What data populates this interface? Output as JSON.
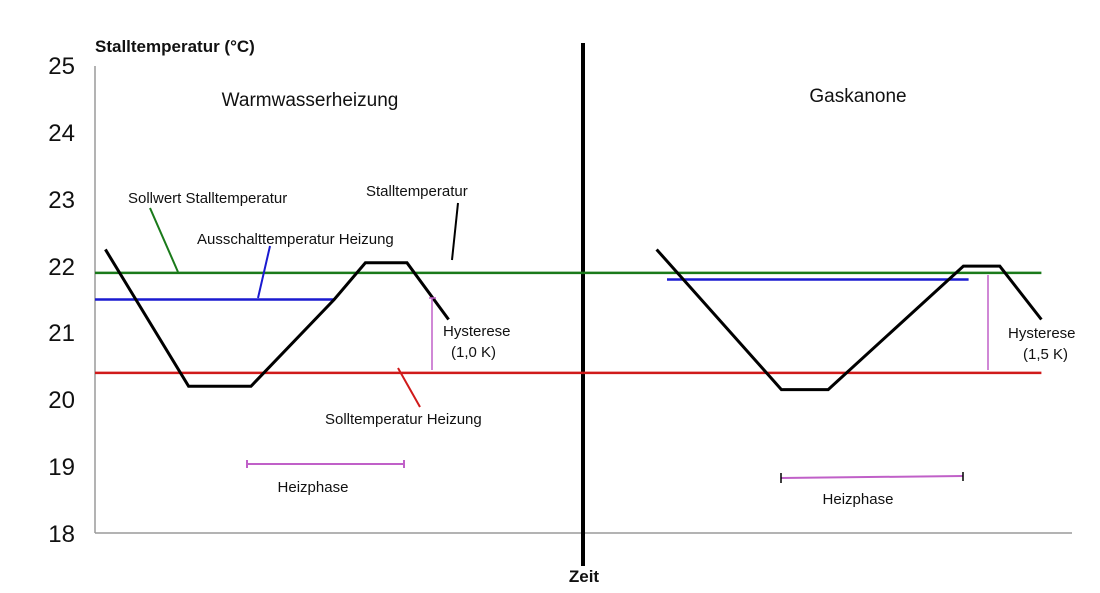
{
  "chart_data": {
    "type": "line",
    "ylabel": "Stalltemperatur (°C)",
    "xlabel": "Zeit",
    "ylim": [
      18,
      25
    ],
    "yticks": [
      "25",
      "24",
      "23",
      "22",
      "21",
      "20",
      "19",
      "18"
    ],
    "panels": [
      {
        "title": "Warmwasserheizung",
        "series": [
          {
            "name": "Stalltemperatur",
            "color": "#000000",
            "points": [
              [
                0.1,
                22.25
              ],
              [
                0.9,
                20.2
              ],
              [
                1.5,
                20.2
              ],
              [
                2.3,
                21.5
              ],
              [
                2.6,
                22.05
              ],
              [
                3.0,
                22.05
              ],
              [
                3.4,
                21.2
              ]
            ]
          },
          {
            "name": "Sollwert Stalltemperatur",
            "color": "#1a7a1a",
            "points": [
              [
                0,
                21.9
              ],
              [
                4.7,
                21.9
              ]
            ]
          },
          {
            "name": "Ausschalttemperatur Heizung",
            "color": "#1a1ad0",
            "points": [
              [
                0,
                21.5
              ],
              [
                2.3,
                21.5
              ]
            ]
          },
          {
            "name": "Solltemperatur Heizung",
            "color": "#d01a1a",
            "points": [
              [
                0,
                20.4
              ],
              [
                4.7,
                20.4
              ]
            ]
          }
        ],
        "annotations": [
          {
            "text": "Hysterese",
            "value": "(1,0 K)"
          },
          {
            "text": "Heizphase"
          }
        ]
      },
      {
        "title": "Gaskanone",
        "series": [
          {
            "name": "Stalltemperatur",
            "color": "#000000",
            "points": [
              [
                5.4,
                22.25
              ],
              [
                6.6,
                20.15
              ],
              [
                7.05,
                20.15
              ],
              [
                8.35,
                22.0
              ],
              [
                8.7,
                22.0
              ],
              [
                9.1,
                21.2
              ]
            ]
          },
          {
            "name": "Sollwert Stalltemperatur",
            "color": "#1a7a1a",
            "points": [
              [
                4.7,
                21.9
              ],
              [
                9.1,
                21.9
              ]
            ]
          },
          {
            "name": "Ausschalttemperatur Heizung",
            "color": "#1a1ad0",
            "points": [
              [
                5.5,
                21.8
              ],
              [
                8.4,
                21.8
              ]
            ]
          },
          {
            "name": "Solltemperatur Heizung",
            "color": "#d01a1a",
            "points": [
              [
                4.7,
                20.4
              ],
              [
                9.1,
                20.4
              ]
            ]
          }
        ],
        "annotations": [
          {
            "text": "Hysterese",
            "value": "(1,5 K)"
          },
          {
            "text": "Heizphase"
          }
        ]
      }
    ],
    "labels": {
      "sollwert": "Sollwert Stalltemperatur",
      "ausschalt": "Ausschalttemperatur Heizung",
      "stalltemp": "Stalltemperatur",
      "solltemp": "Solltemperatur Heizung"
    },
    "colors": {
      "green": "#1a7a1a",
      "blue": "#1a1ad0",
      "red": "#d01a1a",
      "purple": "#c060c8",
      "black": "#000000"
    }
  }
}
